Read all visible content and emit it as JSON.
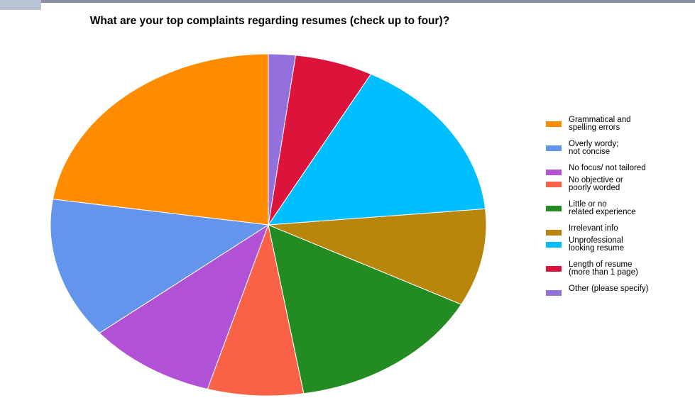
{
  "chart_data": {
    "type": "pie",
    "title": "What are your top complaints regarding resumes (check up to four)?",
    "slices": [
      {
        "label": "Grammatical and spelling errors",
        "value": 22.6,
        "color": "#ff8c00"
      },
      {
        "label": "Overly wordy; not concise",
        "value": 13.3,
        "color": "#6495ed"
      },
      {
        "label": "No focus/ not tailored",
        "value": 9.6,
        "color": "#b152d6"
      },
      {
        "label": "No objective or poorly worded",
        "value": 7.1,
        "color": "#fa6247"
      },
      {
        "label": "Little or no related experience",
        "value": 14.7,
        "color": "#228b22"
      },
      {
        "label": "Irrelevant info",
        "value": 9.2,
        "color": "#b8860b"
      },
      {
        "label": "Unprofessional looking resume",
        "value": 15.7,
        "color": "#00bfff"
      },
      {
        "label": "Length of resume (more than 1 page)",
        "value": 5.8,
        "color": "#dc143c"
      },
      {
        "label": "Other (please specify)",
        "value": 2.0,
        "color": "#9370db"
      }
    ],
    "legend_position": "right"
  },
  "legend": {
    "items": [
      {
        "text": "Grammatical and\nspelling errors",
        "color": "#ff8c00"
      },
      {
        "text": "Overly wordy;\nnot concise",
        "color": "#6495ed"
      },
      {
        "text": "No focus/ not tailored",
        "color": "#b152d6"
      },
      {
        "text": "No objective or\npoorly worded",
        "color": "#fa6247"
      },
      {
        "text": "Little or no\nrelated experience",
        "color": "#228b22"
      },
      {
        "text": "Irrelevant info",
        "color": "#b8860b"
      },
      {
        "text": "Unprofessional\nlooking resume",
        "color": "#00bfff"
      },
      {
        "text": "Length of resume\n(more than 1 page)",
        "color": "#dc143c"
      },
      {
        "text": "Other (please specify)",
        "color": "#9370db"
      }
    ]
  }
}
